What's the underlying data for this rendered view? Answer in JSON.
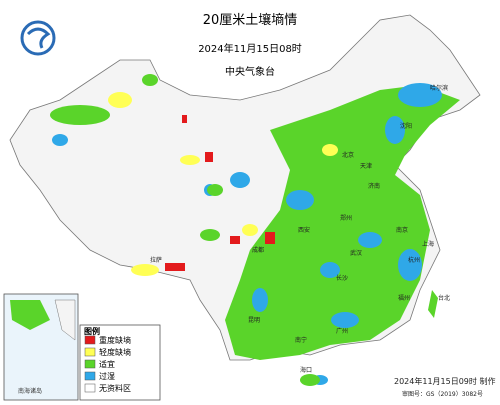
{
  "header": {
    "title": "20厘米土壤墒情",
    "datetime": "2024年11月15日08时",
    "agency": "中央气象台"
  },
  "legend": {
    "title": "图例",
    "items": [
      {
        "label": "重度缺墒",
        "color": "#e31a1c"
      },
      {
        "label": "轻度缺墒",
        "color": "#ffff55"
      },
      {
        "label": "适宜",
        "color": "#5ad42a"
      },
      {
        "label": "过湿",
        "color": "#2fa8e8"
      },
      {
        "label": "无资料区",
        "color": "#ffffff"
      }
    ]
  },
  "inset": {
    "label": "南海诸岛"
  },
  "places": [
    "北京",
    "天津",
    "上海",
    "广州",
    "西安",
    "郑州",
    "武汉",
    "长沙",
    "南京",
    "杭州",
    "福州",
    "昆明",
    "南宁",
    "拉萨",
    "成都",
    "济南",
    "沈阳",
    "哈尔滨",
    "台北",
    "海口"
  ],
  "footer": {
    "made": "2024年11月15日09时 制作",
    "approval": "审图号：GS（2019）3082号"
  }
}
